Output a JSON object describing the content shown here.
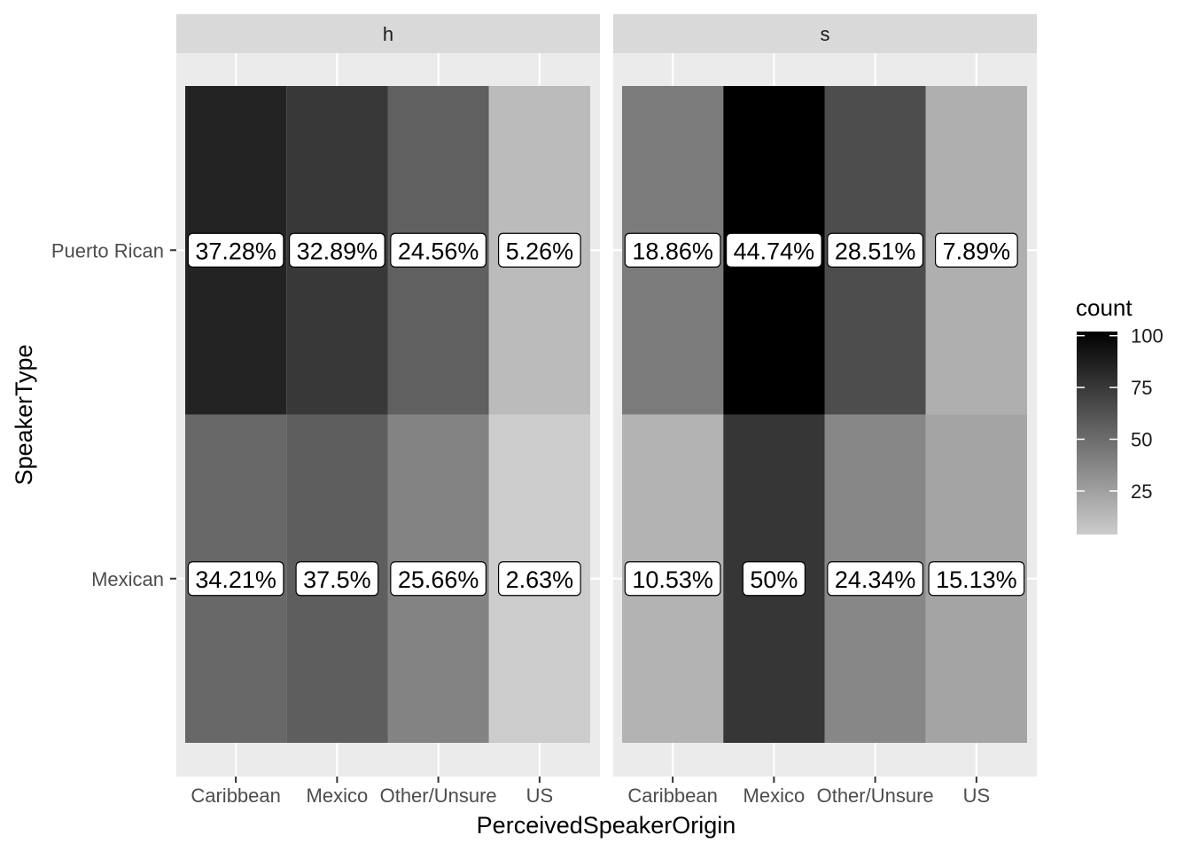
{
  "chart_data": {
    "type": "heatmap",
    "x_title": "PerceivedSpeakerOrigin",
    "y_title": "SpeakerType",
    "categories": [
      "Caribbean",
      "Mexico",
      "Other/Unsure",
      "US"
    ],
    "rows": [
      "Puerto Rican",
      "Mexican"
    ],
    "panels": [
      {
        "name": "h",
        "cells": [
          {
            "row": "Puerto Rican",
            "col": "Caribbean",
            "count": 85,
            "label": "37.28%"
          },
          {
            "row": "Puerto Rican",
            "col": "Mexico",
            "count": 75,
            "label": "32.89%"
          },
          {
            "row": "Puerto Rican",
            "col": "Other/Unsure",
            "count": 56,
            "label": "24.56%"
          },
          {
            "row": "Puerto Rican",
            "col": "US",
            "count": 12,
            "label": "5.26%"
          },
          {
            "row": "Mexican",
            "col": "Caribbean",
            "count": 52,
            "label": "34.21%"
          },
          {
            "row": "Mexican",
            "col": "Mexico",
            "count": 57,
            "label": "37.5%"
          },
          {
            "row": "Mexican",
            "col": "Other/Unsure",
            "count": 39,
            "label": "25.66%"
          },
          {
            "row": "Mexican",
            "col": "US",
            "count": 4,
            "label": "2.63%"
          }
        ]
      },
      {
        "name": "s",
        "cells": [
          {
            "row": "Puerto Rican",
            "col": "Caribbean",
            "count": 43,
            "label": "18.86%"
          },
          {
            "row": "Puerto Rican",
            "col": "Mexico",
            "count": 102,
            "label": "44.74%"
          },
          {
            "row": "Puerto Rican",
            "col": "Other/Unsure",
            "count": 65,
            "label": "28.51%"
          },
          {
            "row": "Puerto Rican",
            "col": "US",
            "count": 18,
            "label": "7.89%"
          },
          {
            "row": "Mexican",
            "col": "Caribbean",
            "count": 16,
            "label": "10.53%"
          },
          {
            "row": "Mexican",
            "col": "Mexico",
            "count": 76,
            "label": "50%"
          },
          {
            "row": "Mexican",
            "col": "Other/Unsure",
            "count": 37,
            "label": "24.34%"
          },
          {
            "row": "Mexican",
            "col": "US",
            "count": 23,
            "label": "15.13%"
          }
        ]
      }
    ],
    "legend": {
      "title": "count",
      "ticks": [
        25,
        50,
        75,
        100
      ],
      "range": [
        4,
        102
      ],
      "low_color": "#cccccc",
      "high_color": "#000000",
      "placement": "right"
    },
    "grid": true
  }
}
